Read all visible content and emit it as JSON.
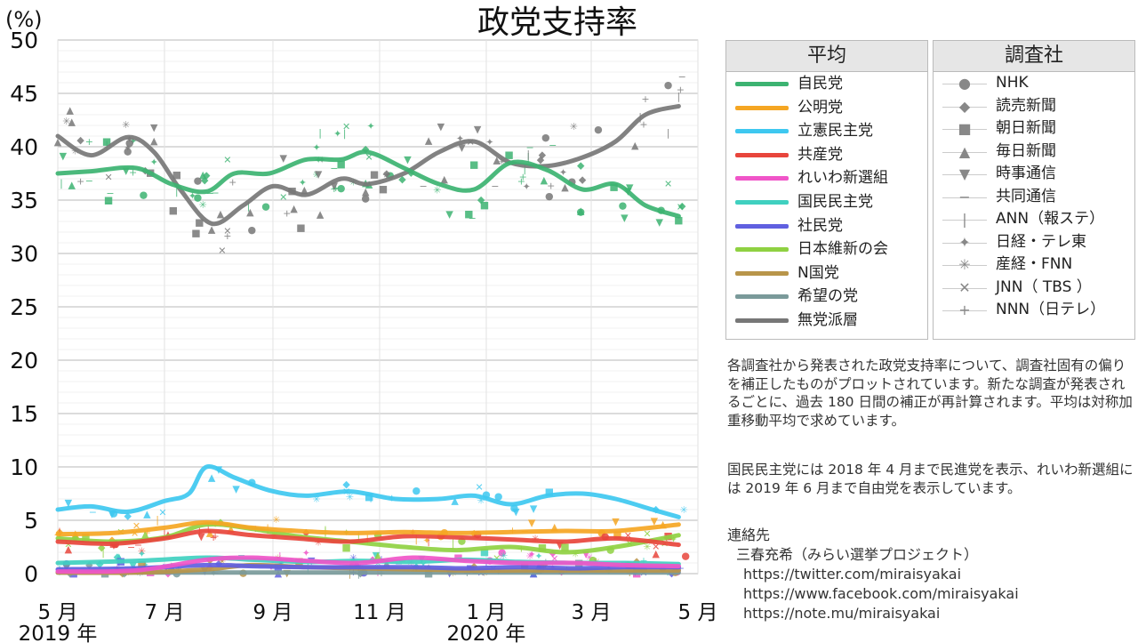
{
  "chart_data": {
    "type": "line",
    "title": "政党支持率",
    "ylabel": "(%)",
    "ylim": [
      0,
      50
    ],
    "yticks": [
      "0",
      "5",
      "10",
      "15",
      "20",
      "25",
      "30",
      "35",
      "40",
      "45",
      "50"
    ],
    "xlim": [
      "2019-05-01",
      "2020-05-01"
    ],
    "xticks": [
      {
        "date": "2019-05-01",
        "label": "5 月"
      },
      {
        "date": "2019-07-01",
        "label": "7 月"
      },
      {
        "date": "2019-09-01",
        "label": "9 月"
      },
      {
        "date": "2019-11-01",
        "label": "11 月"
      },
      {
        "date": "2020-01-01",
        "label": "1 月"
      },
      {
        "date": "2020-03-01",
        "label": "3 月"
      },
      {
        "date": "2020-05-01",
        "label": "5 月"
      }
    ],
    "year_labels": [
      {
        "date": "2019-05-01",
        "label": "2019 年"
      },
      {
        "date": "2020-01-01",
        "label": "2020 年"
      }
    ],
    "grid": true,
    "series": [
      {
        "name": "自民党",
        "color": "#3cb371",
        "x": [
          "2019-05-01",
          "2019-05-20",
          "2019-06-15",
          "2019-07-05",
          "2019-07-25",
          "2019-08-10",
          "2019-08-30",
          "2019-09-20",
          "2019-10-10",
          "2019-10-25",
          "2019-11-15",
          "2019-12-05",
          "2019-12-25",
          "2020-01-15",
          "2020-02-05",
          "2020-02-25",
          "2020-03-15",
          "2020-04-01",
          "2020-04-20"
        ],
        "values": [
          37.5,
          37.7,
          38.0,
          36.5,
          35.8,
          37.5,
          37.5,
          38.8,
          38.8,
          39.5,
          38.0,
          36.5,
          36.0,
          38.5,
          37.8,
          36.0,
          36.5,
          34.5,
          33.5
        ]
      },
      {
        "name": "公明党",
        "color": "#f5a623",
        "x": [
          "2019-05-01",
          "2019-06-01",
          "2019-07-01",
          "2019-07-25",
          "2019-08-20",
          "2019-09-15",
          "2019-10-15",
          "2019-11-15",
          "2019-12-15",
          "2020-01-15",
          "2020-02-15",
          "2020-03-15",
          "2020-04-20"
        ],
        "values": [
          3.7,
          3.8,
          4.3,
          4.8,
          4.3,
          4.0,
          3.8,
          3.9,
          3.8,
          3.9,
          4.0,
          4.0,
          4.6
        ]
      },
      {
        "name": "立憲民主党",
        "color": "#3ec8f0",
        "x": [
          "2019-05-01",
          "2019-05-20",
          "2019-06-10",
          "2019-07-01",
          "2019-07-15",
          "2019-07-25",
          "2019-08-10",
          "2019-08-30",
          "2019-09-20",
          "2019-10-15",
          "2019-11-10",
          "2019-12-05",
          "2019-12-25",
          "2020-01-15",
          "2020-02-05",
          "2020-02-25",
          "2020-03-15",
          "2020-04-05",
          "2020-04-20"
        ],
        "values": [
          6.0,
          6.3,
          5.8,
          6.8,
          7.5,
          10.0,
          9.0,
          7.8,
          7.3,
          7.7,
          7.0,
          7.0,
          7.3,
          6.5,
          7.3,
          7.5,
          7.0,
          6.0,
          5.3
        ]
      },
      {
        "name": "共産党",
        "color": "#e8453c",
        "x": [
          "2019-05-01",
          "2019-06-01",
          "2019-07-01",
          "2019-07-25",
          "2019-08-20",
          "2019-09-15",
          "2019-10-15",
          "2019-11-15",
          "2019-12-15",
          "2020-01-15",
          "2020-02-15",
          "2020-03-15",
          "2020-04-20"
        ],
        "values": [
          3.0,
          2.8,
          3.3,
          4.0,
          3.6,
          3.3,
          3.0,
          3.5,
          3.4,
          3.2,
          3.0,
          3.3,
          2.7
        ]
      },
      {
        "name": "れいわ新選組",
        "color": "#f055c8",
        "x": [
          "2019-05-01",
          "2019-06-15",
          "2019-07-25",
          "2019-08-20",
          "2019-09-20",
          "2019-10-20",
          "2019-11-20",
          "2019-12-20",
          "2020-01-20",
          "2020-02-20",
          "2020-03-20",
          "2020-04-20"
        ],
        "values": [
          0.2,
          0.3,
          1.3,
          1.5,
          1.2,
          1.0,
          1.5,
          1.2,
          1.0,
          1.0,
          0.8,
          0.7
        ]
      },
      {
        "name": "国民民主党",
        "color": "#40d0c0",
        "x": [
          "2019-05-01",
          "2019-06-15",
          "2019-07-25",
          "2019-08-20",
          "2019-09-20",
          "2019-10-20",
          "2019-11-20",
          "2019-12-20",
          "2020-01-20",
          "2020-02-20",
          "2020-03-20",
          "2020-04-20"
        ],
        "values": [
          1.0,
          1.2,
          1.5,
          1.3,
          1.1,
          1.2,
          1.1,
          1.3,
          1.1,
          1.0,
          1.0,
          0.9
        ]
      },
      {
        "name": "社民党",
        "color": "#6060e0",
        "x": [
          "2019-05-01",
          "2019-06-15",
          "2019-07-25",
          "2019-08-20",
          "2019-09-20",
          "2019-10-20",
          "2019-11-20",
          "2019-12-20",
          "2020-01-20",
          "2020-02-20",
          "2020-03-20",
          "2020-04-20"
        ],
        "values": [
          0.4,
          0.5,
          0.8,
          0.7,
          0.6,
          0.6,
          0.6,
          0.5,
          0.6,
          0.5,
          0.6,
          0.6
        ]
      },
      {
        "name": "日本維新の会",
        "color": "#8fd142",
        "x": [
          "2019-05-01",
          "2019-06-01",
          "2019-07-01",
          "2019-07-25",
          "2019-08-20",
          "2019-09-15",
          "2019-10-15",
          "2019-11-15",
          "2019-12-15",
          "2020-01-15",
          "2020-02-15",
          "2020-03-15",
          "2020-04-20"
        ],
        "values": [
          3.3,
          3.0,
          3.4,
          4.6,
          4.2,
          3.5,
          3.0,
          2.5,
          2.2,
          2.5,
          2.0,
          2.5,
          3.6
        ]
      },
      {
        "name": "N国党",
        "color": "#b8954a",
        "x": [
          "2019-05-01",
          "2019-06-15",
          "2019-07-25",
          "2019-08-20",
          "2019-09-20",
          "2019-10-20",
          "2019-11-20",
          "2019-12-20",
          "2020-01-20",
          "2020-02-20",
          "2020-03-20",
          "2020-04-20"
        ],
        "values": [
          0.1,
          0.1,
          0.4,
          0.8,
          0.6,
          0.5,
          0.4,
          0.3,
          0.3,
          0.3,
          0.3,
          0.3
        ]
      },
      {
        "name": "希望の党",
        "color": "#7a9a9a",
        "x": [
          "2019-05-01",
          "2019-08-01",
          "2019-11-01",
          "2020-02-01",
          "2020-04-20"
        ],
        "values": [
          0.1,
          0.1,
          0.1,
          0.1,
          0.1
        ]
      },
      {
        "name": "無党派層",
        "color": "#777777",
        "x": [
          "2019-05-01",
          "2019-05-20",
          "2019-06-10",
          "2019-06-25",
          "2019-07-10",
          "2019-07-28",
          "2019-08-15",
          "2019-09-01",
          "2019-09-20",
          "2019-10-10",
          "2019-10-25",
          "2019-11-15",
          "2019-12-05",
          "2019-12-25",
          "2020-01-15",
          "2020-02-05",
          "2020-02-25",
          "2020-03-15",
          "2020-04-01",
          "2020-04-20"
        ],
        "values": [
          41.0,
          39.2,
          40.9,
          39.5,
          36.0,
          32.8,
          34.5,
          36.3,
          35.5,
          37.0,
          36.5,
          37.5,
          39.5,
          40.5,
          38.5,
          38.2,
          39.0,
          40.5,
          43.0,
          43.8
        ]
      }
    ],
    "legend_avg_title": "平均",
    "legend_pollsters_title": "調査社",
    "pollsters": [
      {
        "name": "NHK",
        "marker": "●"
      },
      {
        "name": "読売新聞",
        "marker": "◆"
      },
      {
        "name": "朝日新聞",
        "marker": "■"
      },
      {
        "name": "毎日新聞",
        "marker": "▲"
      },
      {
        "name": "時事通信",
        "marker": "▼"
      },
      {
        "name": "共同通信",
        "marker": "−"
      },
      {
        "name": "ANN（報ステ）",
        "marker": "|"
      },
      {
        "name": "日経・テレ東",
        "marker": "✦"
      },
      {
        "name": "産経・FNN",
        "marker": "✳"
      },
      {
        "name": "JNN（ TBS ）",
        "marker": "✕"
      },
      {
        "name": "NNN（日テレ）",
        "marker": "+"
      }
    ]
  },
  "notes": {
    "p1": "各調査社から発表された政党支持率について、調査社固有の偏りを補正したものがプロットされています。新たな調査が発表されるごとに、過去 180 日間の補正が再計算されます。平均は対称加重移動平均で求めています。",
    "p2": "国民民主党には 2018 年 4 月まで民進党を表示、れいわ新選組には 2019 年 6 月まで自由党を表示しています。"
  },
  "contact": {
    "heading": "連絡先",
    "name": "三春充希（みらい選挙プロジェクト）",
    "twitter": "https://twitter.com/miraisyakai",
    "facebook": "https://www.facebook.com/miraisyakai",
    "note": "https://note.mu/miraisyakai"
  }
}
